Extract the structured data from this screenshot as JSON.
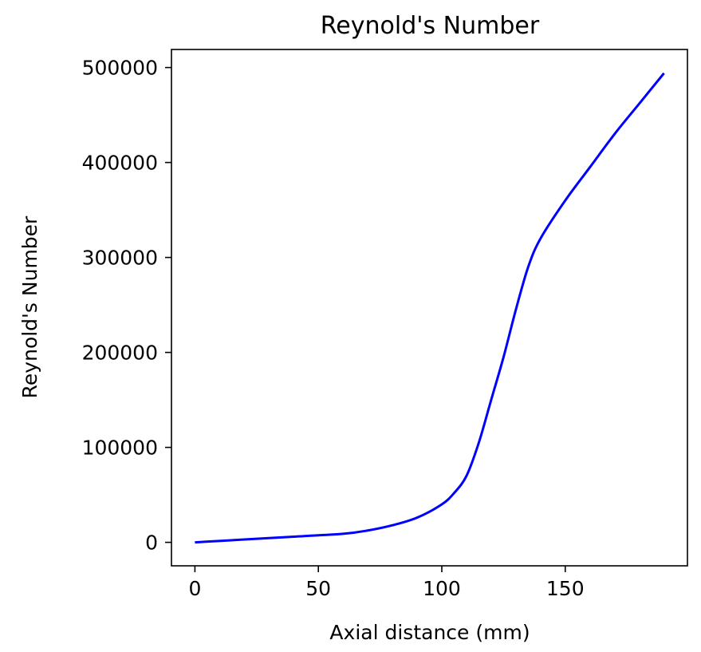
{
  "chart_data": {
    "type": "line",
    "title": "Reynold's Number",
    "xlabel": "Axial distance (mm)",
    "ylabel": "Reynold's Number",
    "xlim": [
      -9.5,
      199.5
    ],
    "ylim": [
      -24700,
      519000
    ],
    "xticks": [
      0,
      50,
      100,
      150
    ],
    "yticks": [
      0,
      100000,
      200000,
      300000,
      400000,
      500000
    ],
    "grid": false,
    "legend": "none",
    "series": [
      {
        "color": "#0000ff",
        "x": [
          0,
          20,
          40,
          60,
          70,
          80,
          90,
          100,
          105,
          110,
          115,
          120,
          125,
          130,
          135,
          140,
          150,
          160,
          170,
          180,
          190
        ],
        "y": [
          0,
          3000,
          6000,
          9000,
          12500,
          18000,
          26000,
          40000,
          52000,
          70000,
          105000,
          150000,
          195000,
          245000,
          290000,
          320000,
          360000,
          395000,
          430000,
          462000,
          494000
        ]
      }
    ]
  }
}
